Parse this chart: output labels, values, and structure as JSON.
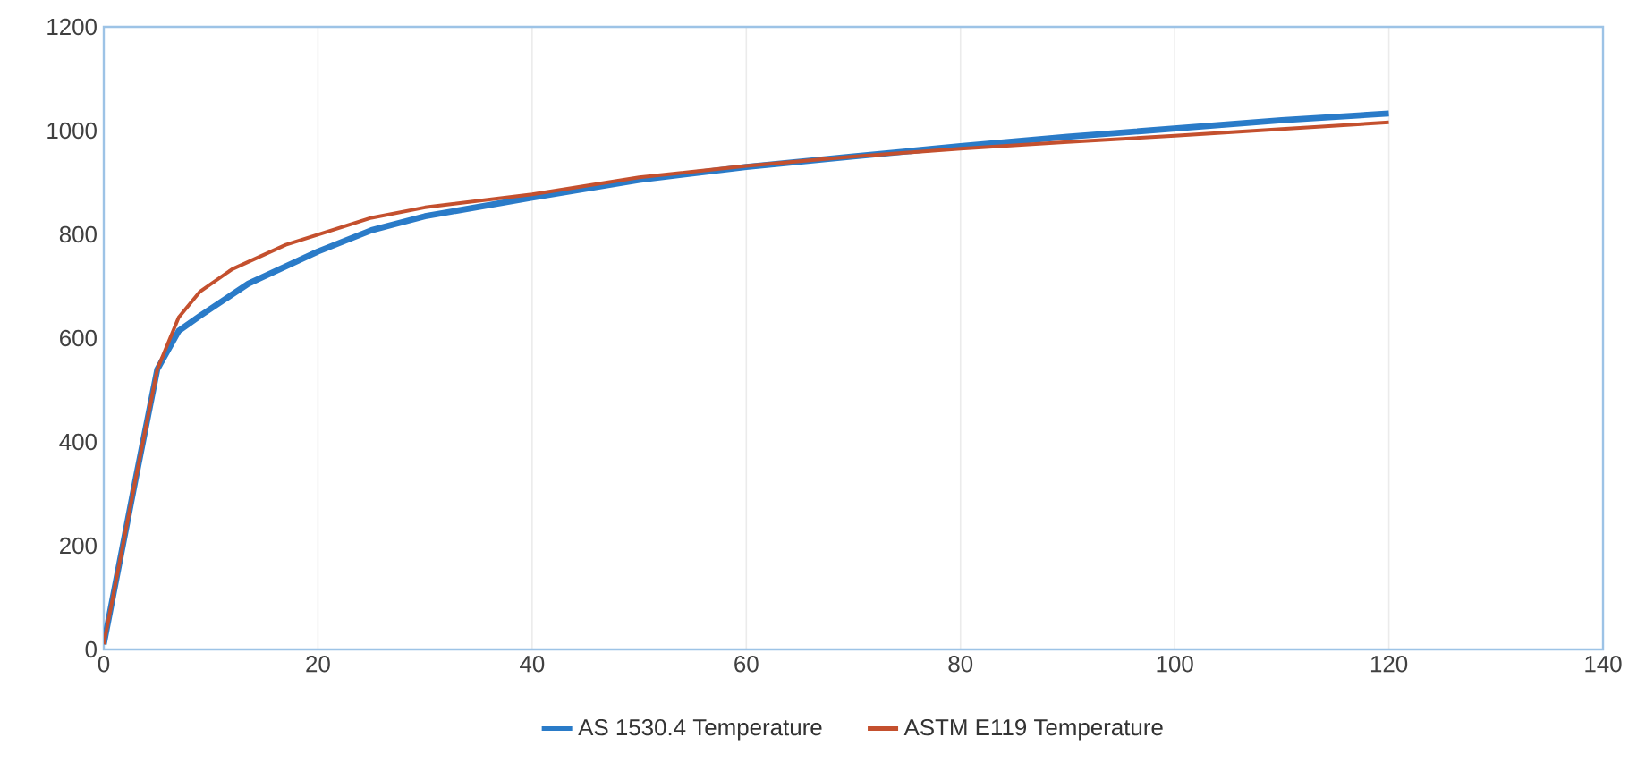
{
  "chart_data": {
    "type": "line",
    "xlim": [
      0,
      140
    ],
    "ylim": [
      0,
      1200
    ],
    "xticks": [
      0,
      20,
      40,
      60,
      80,
      100,
      120,
      140
    ],
    "yticks": [
      0,
      200,
      400,
      600,
      800,
      1000,
      1200
    ],
    "grid": "x",
    "legend": "bottom",
    "marker": "none",
    "line_style": "solid",
    "series": [
      {
        "name": "AS 1530.4 Temperature",
        "color": "#2a7bc8",
        "x": [
          0,
          3,
          5,
          7,
          9,
          13.5,
          20,
          25,
          30,
          40,
          50,
          60,
          70,
          80,
          90,
          100,
          110,
          120
        ],
        "values": [
          10,
          331,
          540,
          614,
          643,
          705,
          767,
          808,
          835,
          871,
          905,
          930,
          950,
          970,
          988,
          1004,
          1020,
          1033
        ]
      },
      {
        "name": "ASTM E119 Temperature",
        "color": "#c4502e",
        "x": [
          0,
          3,
          5,
          7,
          9,
          12,
          17,
          25,
          30,
          40,
          50,
          60,
          70,
          80,
          90,
          100,
          110,
          120
        ],
        "values": [
          10,
          331,
          540,
          640,
          690,
          733,
          780,
          832,
          852,
          877,
          910,
          932,
          950,
          965,
          978,
          990,
          1003,
          1016
        ]
      }
    ]
  }
}
